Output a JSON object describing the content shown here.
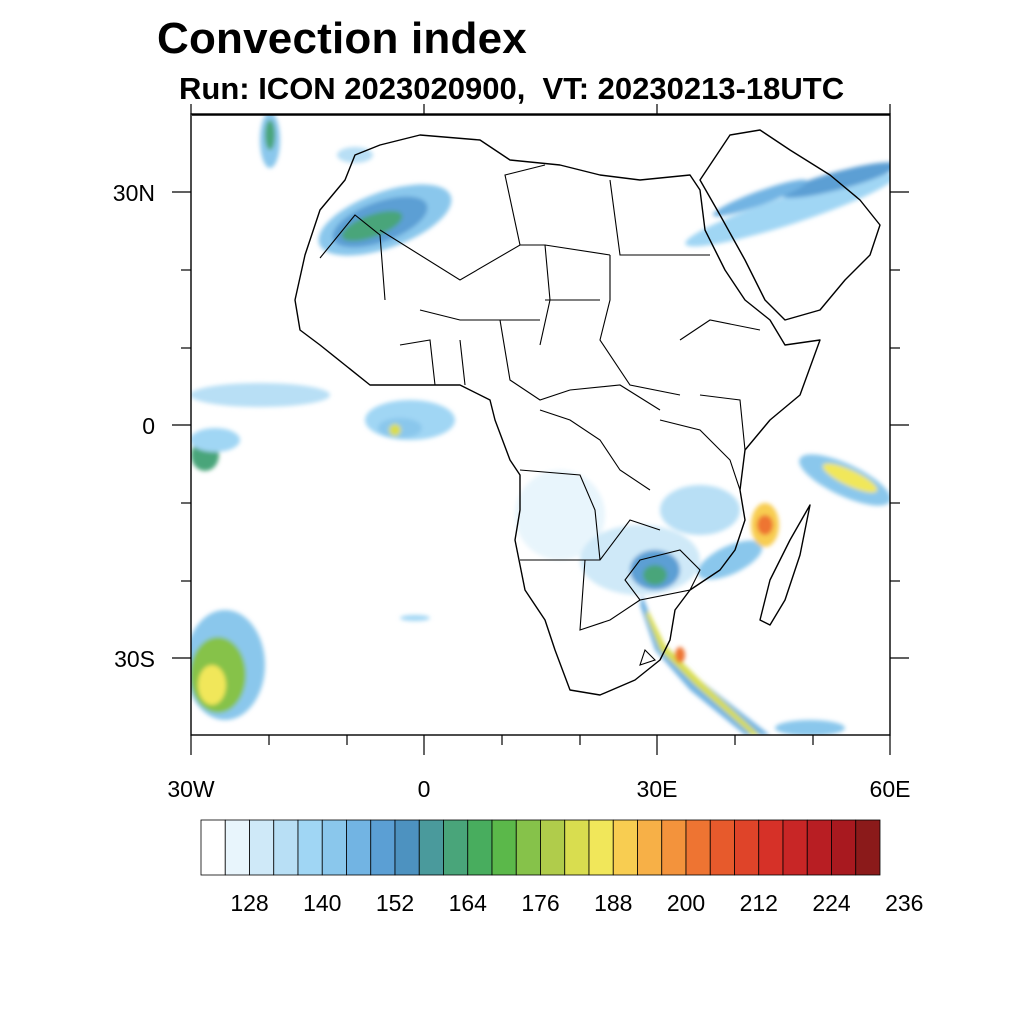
{
  "title": "Convection index",
  "subtitle": "Run: ICON 2023020900,  VT: 20230213-18UTC",
  "map": {
    "extent": {
      "lon": [
        -30,
        60
      ],
      "lat": [
        -40,
        40
      ]
    },
    "lat_labels": [
      {
        "value": 30,
        "text": "30N"
      },
      {
        "value": 0,
        "text": "0"
      },
      {
        "value": -30,
        "text": "30S"
      }
    ],
    "lon_labels": [
      {
        "value": -30,
        "text": "30W"
      },
      {
        "value": 0,
        "text": "0"
      },
      {
        "value": 30,
        "text": "30E"
      },
      {
        "value": 60,
        "text": "60E"
      }
    ]
  },
  "colorbar": {
    "colors": [
      "#ffffff",
      "#e8f5fc",
      "#cfe9f8",
      "#b8dff5",
      "#a0d6f4",
      "#8ac7ec",
      "#72b4e3",
      "#5b9fd4",
      "#4d92c0",
      "#4a9a9c",
      "#49a57a",
      "#48ad5e",
      "#5bb84a",
      "#86c24a",
      "#b0cc4b",
      "#d9dd4f",
      "#f1e75a",
      "#f8cd51",
      "#f7b047",
      "#f3933c",
      "#ee7432",
      "#e75a2c",
      "#df4429",
      "#d63128",
      "#c82626",
      "#b81e23",
      "#a8191f",
      "#8b1a1a"
    ],
    "tick_labels": [
      "128",
      "140",
      "152",
      "164",
      "176",
      "188",
      "200",
      "212",
      "224",
      "236"
    ]
  }
}
